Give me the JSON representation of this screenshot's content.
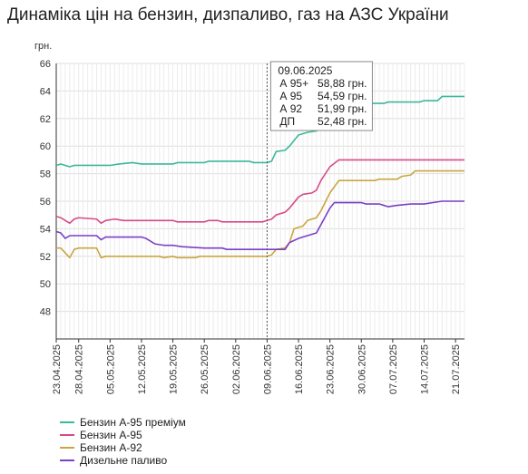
{
  "title": "Динаміка цін на бензин, дизпаливо, газ на АЗС України",
  "chart_data": {
    "type": "line",
    "title": "Динаміка цін на бензин, дизпаливо, газ на АЗС України",
    "ylabel": "грн.",
    "xlabel": "",
    "ylim": [
      46,
      66
    ],
    "yticks": [
      48,
      50,
      52,
      54,
      56,
      58,
      60,
      62,
      64,
      66
    ],
    "x_start": "2025-04-23",
    "x_end": "2025-07-23",
    "xtick_labels": [
      "23.04.2025",
      "28.04.2025",
      "05.05.2025",
      "12.05.2025",
      "19.05.2025",
      "26.05.2025",
      "02.06.2025",
      "09.06.2025",
      "16.06.2025",
      "23.06.2025",
      "30.06.2025",
      "07.07.2025",
      "14.07.2025",
      "21.07.2025"
    ],
    "xtick_dates": [
      "2025-04-23",
      "2025-04-28",
      "2025-05-05",
      "2025-05-12",
      "2025-05-19",
      "2025-05-26",
      "2025-06-02",
      "2025-06-09",
      "2025-06-16",
      "2025-06-23",
      "2025-06-30",
      "2025-07-07",
      "2025-07-14",
      "2025-07-21"
    ],
    "grid": true,
    "legend_position": "bottom-left",
    "series": [
      {
        "name": "Бензин А-95 преміум",
        "color": "#3cb89a",
        "points": [
          [
            "2025-04-23",
            58.6
          ],
          [
            "2025-04-24",
            58.7
          ],
          [
            "2025-04-26",
            58.5
          ],
          [
            "2025-04-27",
            58.6
          ],
          [
            "2025-05-05",
            58.6
          ],
          [
            "2025-05-07",
            58.7
          ],
          [
            "2025-05-10",
            58.8
          ],
          [
            "2025-05-12",
            58.7
          ],
          [
            "2025-05-19",
            58.7
          ],
          [
            "2025-05-20",
            58.8
          ],
          [
            "2025-05-26",
            58.8
          ],
          [
            "2025-05-27",
            58.9
          ],
          [
            "2025-06-05",
            58.9
          ],
          [
            "2025-06-06",
            58.8
          ],
          [
            "2025-06-09",
            58.8
          ],
          [
            "2025-06-10",
            58.9
          ],
          [
            "2025-06-11",
            59.6
          ],
          [
            "2025-06-13",
            59.7
          ],
          [
            "2025-06-14",
            60.0
          ],
          [
            "2025-06-16",
            60.8
          ],
          [
            "2025-06-18",
            61.0
          ],
          [
            "2025-06-20",
            61.1
          ],
          [
            "2025-06-22",
            61.7
          ],
          [
            "2025-06-23",
            62.3
          ],
          [
            "2025-06-24",
            62.8
          ],
          [
            "2025-06-25",
            63.1
          ],
          [
            "2025-07-05",
            63.1
          ],
          [
            "2025-07-06",
            63.2
          ],
          [
            "2025-07-13",
            63.2
          ],
          [
            "2025-07-14",
            63.3
          ],
          [
            "2025-07-17",
            63.3
          ],
          [
            "2025-07-18",
            63.6
          ],
          [
            "2025-07-23",
            63.6
          ]
        ]
      },
      {
        "name": "Бензин А-95",
        "color": "#d84a87",
        "points": [
          [
            "2025-04-23",
            54.9
          ],
          [
            "2025-04-24",
            54.8
          ],
          [
            "2025-04-26",
            54.4
          ],
          [
            "2025-04-27",
            54.7
          ],
          [
            "2025-04-28",
            54.8
          ],
          [
            "2025-05-02",
            54.7
          ],
          [
            "2025-05-03",
            54.4
          ],
          [
            "2025-05-04",
            54.6
          ],
          [
            "2025-05-06",
            54.7
          ],
          [
            "2025-05-08",
            54.6
          ],
          [
            "2025-05-19",
            54.6
          ],
          [
            "2025-05-20",
            54.5
          ],
          [
            "2025-05-26",
            54.5
          ],
          [
            "2025-05-27",
            54.6
          ],
          [
            "2025-05-29",
            54.6
          ],
          [
            "2025-05-30",
            54.5
          ],
          [
            "2025-06-08",
            54.5
          ],
          [
            "2025-06-09",
            54.6
          ],
          [
            "2025-06-10",
            54.7
          ],
          [
            "2025-06-11",
            55.0
          ],
          [
            "2025-06-13",
            55.2
          ],
          [
            "2025-06-14",
            55.5
          ],
          [
            "2025-06-16",
            56.3
          ],
          [
            "2025-06-17",
            56.5
          ],
          [
            "2025-06-19",
            56.6
          ],
          [
            "2025-06-20",
            56.8
          ],
          [
            "2025-06-21",
            57.5
          ],
          [
            "2025-06-23",
            58.5
          ],
          [
            "2025-06-25",
            59.0
          ],
          [
            "2025-07-23",
            59.0
          ]
        ]
      },
      {
        "name": "Бензин А-92",
        "color": "#c9a642",
        "points": [
          [
            "2025-04-23",
            52.6
          ],
          [
            "2025-04-24",
            52.6
          ],
          [
            "2025-04-26",
            51.9
          ],
          [
            "2025-04-27",
            52.5
          ],
          [
            "2025-04-28",
            52.6
          ],
          [
            "2025-05-02",
            52.6
          ],
          [
            "2025-05-03",
            51.9
          ],
          [
            "2025-05-04",
            52.0
          ],
          [
            "2025-05-16",
            52.0
          ],
          [
            "2025-05-17",
            51.9
          ],
          [
            "2025-05-19",
            52.0
          ],
          [
            "2025-05-20",
            51.9
          ],
          [
            "2025-05-24",
            51.9
          ],
          [
            "2025-05-25",
            52.0
          ],
          [
            "2025-06-08",
            52.0
          ],
          [
            "2025-06-09",
            52.0
          ],
          [
            "2025-06-10",
            52.1
          ],
          [
            "2025-06-11",
            52.5
          ],
          [
            "2025-06-13",
            52.6
          ],
          [
            "2025-06-14",
            53.0
          ],
          [
            "2025-06-15",
            54.0
          ],
          [
            "2025-06-17",
            54.2
          ],
          [
            "2025-06-18",
            54.6
          ],
          [
            "2025-06-20",
            54.8
          ],
          [
            "2025-06-21",
            55.3
          ],
          [
            "2025-06-23",
            56.6
          ],
          [
            "2025-06-25",
            57.5
          ],
          [
            "2025-07-03",
            57.5
          ],
          [
            "2025-07-04",
            57.6
          ],
          [
            "2025-07-08",
            57.6
          ],
          [
            "2025-07-09",
            57.8
          ],
          [
            "2025-07-11",
            57.9
          ],
          [
            "2025-07-12",
            58.2
          ],
          [
            "2025-07-23",
            58.2
          ]
        ]
      },
      {
        "name": "Дизельне паливо",
        "color": "#7b3fc6",
        "points": [
          [
            "2025-04-23",
            53.8
          ],
          [
            "2025-04-24",
            53.7
          ],
          [
            "2025-04-25",
            53.3
          ],
          [
            "2025-04-26",
            53.5
          ],
          [
            "2025-05-02",
            53.5
          ],
          [
            "2025-05-03",
            53.2
          ],
          [
            "2025-05-04",
            53.4
          ],
          [
            "2025-05-12",
            53.4
          ],
          [
            "2025-05-13",
            53.3
          ],
          [
            "2025-05-14",
            53.1
          ],
          [
            "2025-05-15",
            52.9
          ],
          [
            "2025-05-17",
            52.8
          ],
          [
            "2025-05-19",
            52.8
          ],
          [
            "2025-05-21",
            52.7
          ],
          [
            "2025-05-26",
            52.6
          ],
          [
            "2025-05-30",
            52.6
          ],
          [
            "2025-05-31",
            52.5
          ],
          [
            "2025-06-09",
            52.5
          ],
          [
            "2025-06-10",
            52.5
          ],
          [
            "2025-06-11",
            52.5
          ],
          [
            "2025-06-13",
            52.5
          ],
          [
            "2025-06-14",
            53.0
          ],
          [
            "2025-06-16",
            53.3
          ],
          [
            "2025-06-18",
            53.5
          ],
          [
            "2025-06-20",
            53.7
          ],
          [
            "2025-06-21",
            54.3
          ],
          [
            "2025-06-23",
            55.5
          ],
          [
            "2025-06-24",
            55.9
          ],
          [
            "2025-06-30",
            55.9
          ],
          [
            "2025-07-01",
            55.8
          ],
          [
            "2025-07-04",
            55.8
          ],
          [
            "2025-07-05",
            55.7
          ],
          [
            "2025-07-06",
            55.6
          ],
          [
            "2025-07-08",
            55.7
          ],
          [
            "2025-07-11",
            55.8
          ],
          [
            "2025-07-14",
            55.8
          ],
          [
            "2025-07-16",
            55.9
          ],
          [
            "2025-07-18",
            56.0
          ],
          [
            "2025-07-23",
            56.0
          ]
        ]
      }
    ],
    "tooltip": {
      "date": "09.06.2025",
      "rows": [
        {
          "label": "А 95+",
          "value": "58,88 грн."
        },
        {
          "label": "А 95",
          "value": "54,59 грн."
        },
        {
          "label": "А 92",
          "value": "51,99 грн."
        },
        {
          "label": "ДП",
          "value": "52,48 грн."
        }
      ]
    }
  }
}
